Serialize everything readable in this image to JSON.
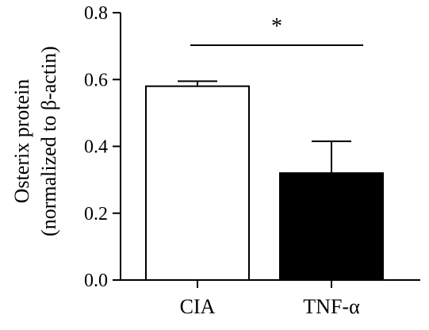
{
  "chart_data": {
    "type": "bar",
    "categories": [
      "CIA",
      "TNF-α"
    ],
    "values": [
      0.58,
      0.32
    ],
    "errors": [
      0.015,
      0.095
    ],
    "bar_colors": [
      "#ffffff",
      "#000000"
    ],
    "ylabel_line1": "Osterix protein",
    "ylabel_line2": "(normalized to β-actin)",
    "ylim": [
      0,
      0.8
    ],
    "yticks": [
      0.0,
      0.2,
      0.4,
      0.6,
      0.8
    ],
    "ytick_labels": [
      "0.0",
      "0.2",
      "0.4",
      "0.6",
      "0.8"
    ],
    "significance": {
      "label": "*",
      "between": [
        "CIA",
        "TNF-α"
      ]
    },
    "grid": false,
    "legend": "none"
  }
}
